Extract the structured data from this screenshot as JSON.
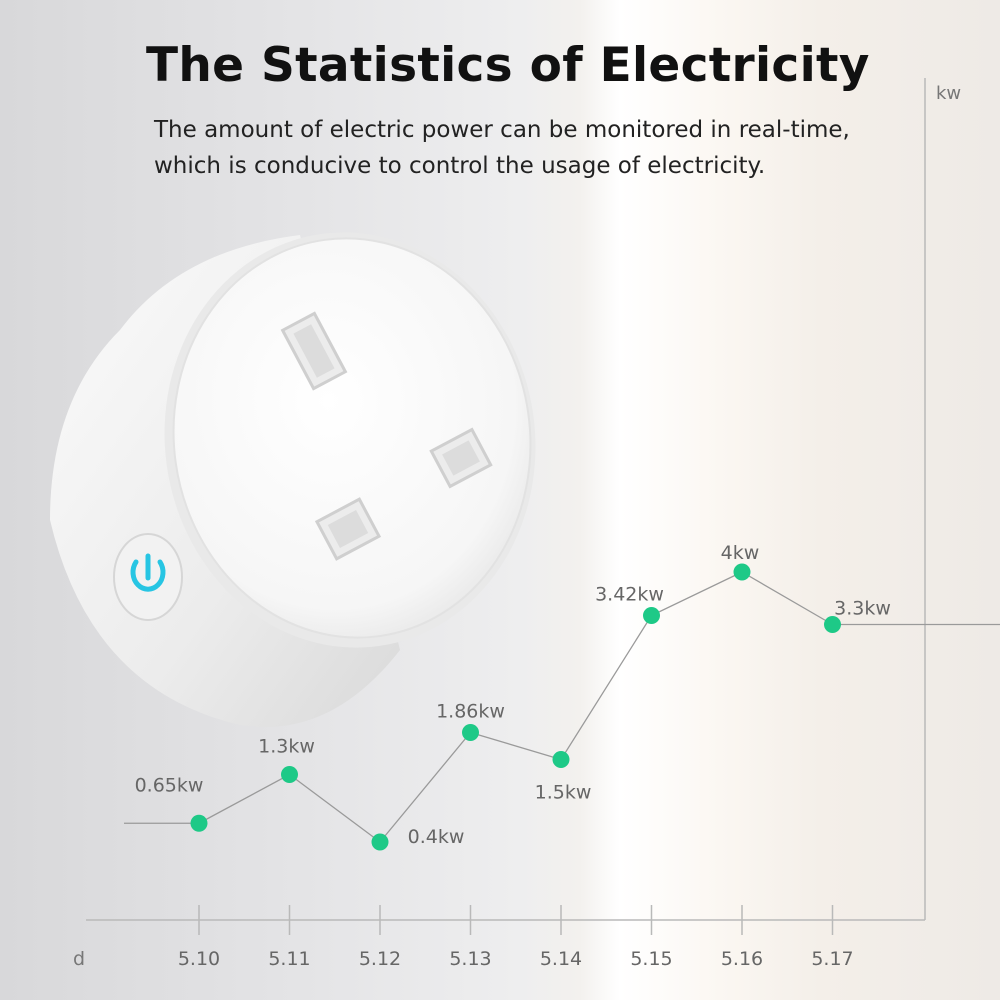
{
  "title": "The Statistics of Electricity",
  "subtitle_lines": [
    "The amount of electric power can be monitored in real-time,",
    "which is conducive to control the usage of electricity."
  ],
  "colors": {
    "point": "#1ec987",
    "line": "#9a9a9a",
    "axis": "#b9b9b9",
    "power_icon": "#27c5e3"
  },
  "chart_data": {
    "type": "line",
    "title": "The Statistics of Electricity",
    "xlabel": "d",
    "ylabel": "kw",
    "categories": [
      "5.10",
      "5.11",
      "5.12",
      "5.13",
      "5.14",
      "5.15",
      "5.16",
      "5.17"
    ],
    "values": [
      0.65,
      1.3,
      0.4,
      1.86,
      1.5,
      3.42,
      4,
      3.3
    ],
    "data_labels": [
      "0.65kw",
      "1.3kw",
      "0.4kw",
      "1.86kw",
      "1.5kw",
      "3.42kw",
      "4kw",
      "3.3kw"
    ],
    "ylim": [
      0,
      4.5
    ],
    "grid": false
  }
}
